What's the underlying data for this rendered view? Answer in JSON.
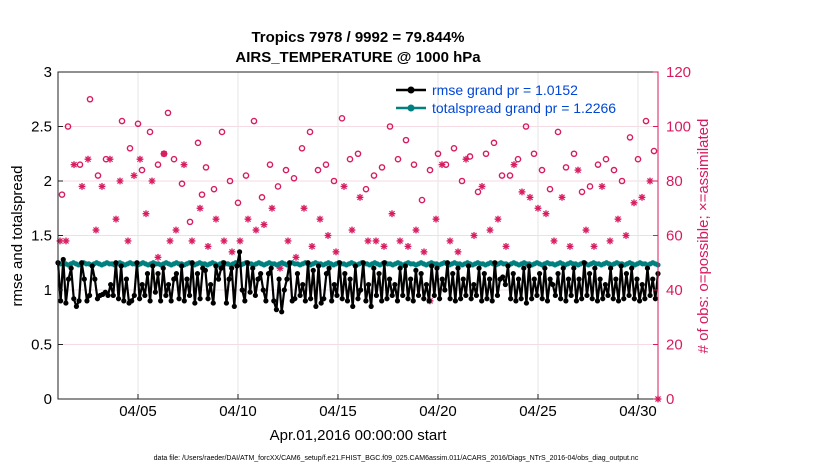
{
  "chart_data": {
    "type": "line",
    "title_line1": "Tropics 7978 / 9992 = 79.844%",
    "title_line2": "AIRS_TEMPERATURE @ 1000 hPa",
    "xlabel": "Apr.01,2016 00:00:00 start",
    "ylabel_left": "rmse and totalspread",
    "ylabel_right": "# of obs: o=possible; ×=assimilated",
    "footer": "data file: /Users/raeder/DAI/ATM_forcXX/CAM6_setup/f.e21.FHIST_BGC.f09_025.CAM6assim.011/ACARS_2016/Diags_NTrS_2016-04/obs_diag_output.nc",
    "x_ticks": [
      {
        "day": 5,
        "label": "04/05"
      },
      {
        "day": 10,
        "label": "04/10"
      },
      {
        "day": 15,
        "label": "04/15"
      },
      {
        "day": 20,
        "label": "04/20"
      },
      {
        "day": 25,
        "label": "04/25"
      },
      {
        "day": 30,
        "label": "04/30"
      }
    ],
    "y_left_ticks": [
      {
        "v": 0,
        "label": "0"
      },
      {
        "v": 0.5,
        "label": "0.5"
      },
      {
        "v": 1,
        "label": "1"
      },
      {
        "v": 1.5,
        "label": "1.5"
      },
      {
        "v": 2,
        "label": "2"
      },
      {
        "v": 2.5,
        "label": "2.5"
      },
      {
        "v": 3,
        "label": "3"
      }
    ],
    "y_right_ticks": [
      {
        "v": 0,
        "label": "0"
      },
      {
        "v": 20,
        "label": "20"
      },
      {
        "v": 40,
        "label": "40"
      },
      {
        "v": 60,
        "label": "60"
      },
      {
        "v": 80,
        "label": "80"
      },
      {
        "v": 100,
        "label": "100"
      },
      {
        "v": 120,
        "label": "120"
      }
    ],
    "xlim": [
      1.0,
      31.0
    ],
    "ylim_left": [
      0,
      3
    ],
    "ylim_right": [
      0,
      120
    ],
    "grid": true,
    "legend_position": "top-right",
    "colors": {
      "rmse": "#000000",
      "spread": "#00807f",
      "obs": "#d81b60",
      "legend_text": "#0047d6"
    },
    "series": [
      {
        "name": "rmse grand pr = 1.0152",
        "key": "rmse",
        "values": [
          1.25,
          0.9,
          1.28,
          0.88,
          1.1,
          1.2,
          0.92,
          0.85,
          0.9,
          1.25,
          1.1,
          0.9,
          0.95,
          1.22,
          1.1,
          0.92,
          0.95,
          0.96,
          0.98,
          0.95,
          1.05,
          0.95,
          1.25,
          0.92,
          1.22,
          0.9,
          1.1,
          0.88,
          0.9,
          0.95,
          1.25,
          0.92,
          1.05,
          0.95,
          1.15,
          0.9,
          1.22,
          0.98,
          1.15,
          0.9,
          1.2,
          0.95,
          1.05,
          0.9,
          1.1,
          1.15,
          0.92,
          1.22,
          0.9,
          1.1,
          0.95,
          1.25,
          0.88,
          1.15,
          0.92,
          1.2,
          1.18,
          0.92,
          1.05,
          0.88,
          1.22,
          1.1,
          1.2,
          1.25,
          0.88,
          1.1,
          1.2,
          0.85,
          1.22,
          1.35,
          1.0,
          0.9,
          1.25,
          0.98,
          1.2,
          0.95,
          1.1,
          1.15,
          1.0,
          0.9,
          1.15,
          1.2,
          0.9,
          0.82,
          1.1,
          0.8,
          1.0,
          1.1,
          1.25,
          0.9,
          0.92,
          1.15,
          0.95,
          1.05,
          0.9,
          1.25,
          0.92,
          1.18,
          0.85,
          1.22,
          0.88,
          0.92,
          1.15,
          1.2,
          0.9,
          1.05,
          0.95,
          1.25,
          0.92,
          1.15,
          0.9,
          1.1,
          0.85,
          1.22,
          0.92,
          1.0,
          1.25,
          0.9,
          1.05,
          0.85,
          1.2,
          0.95,
          1.15,
          0.9,
          1.25,
          0.92,
          1.1,
          0.95,
          1.05,
          0.9,
          1.2,
          0.95,
          1.22,
          0.92,
          1.1,
          0.9,
          1.18,
          0.95,
          1.15,
          0.92,
          1.05,
          0.9,
          1.22,
          0.95,
          1.2,
          0.92,
          1.1,
          1.0,
          1.25,
          0.92,
          1.15,
          0.9,
          1.2,
          0.92,
          1.1,
          0.95,
          1.22,
          0.92,
          1.05,
          0.95,
          1.2,
          0.9,
          1.15,
          0.92,
          1.1,
          0.9,
          1.25,
          0.95,
          1.1,
          1.12,
          1.05,
          1.22,
          0.92,
          1.15,
          0.9,
          1.1,
          0.92,
          1.2,
          0.88,
          1.22,
          0.92,
          1.1,
          0.95,
          1.15,
          0.92,
          1.2,
          0.9,
          1.1,
          1.05,
          0.95,
          1.15,
          0.92,
          1.2,
          0.9,
          1.1,
          0.95,
          1.2,
          0.9,
          1.1,
          0.92,
          1.25,
          0.95,
          1.15,
          0.92,
          1.2,
          0.9,
          1.1,
          0.92,
          1.05,
          0.95,
          1.2,
          0.92,
          1.1,
          0.9,
          1.22,
          0.92,
          1.15,
          0.95,
          1.2,
          0.92,
          1.1,
          0.9,
          1.05,
          0.92,
          1.2,
          0.95,
          1.1,
          0.92,
          1.15
        ]
      },
      {
        "name": "totalspread grand pr = 1.2266",
        "key": "spread",
        "values": [
          1.25,
          1.24,
          1.25,
          1.24,
          1.23,
          1.24,
          1.25,
          1.24,
          1.23,
          1.24,
          1.25,
          1.24,
          1.24,
          1.23,
          1.24,
          1.25,
          1.24,
          1.23,
          1.24,
          1.25,
          1.24,
          1.24,
          1.23,
          1.24,
          1.25,
          1.24,
          1.23,
          1.24,
          1.25,
          1.24,
          1.24,
          1.23,
          1.24,
          1.25,
          1.24,
          1.23,
          1.24,
          1.25,
          1.24,
          1.24,
          1.23,
          1.24,
          1.25,
          1.24,
          1.23,
          1.24,
          1.25,
          1.24,
          1.24,
          1.23,
          1.24,
          1.25,
          1.24,
          1.23,
          1.24,
          1.25,
          1.24,
          1.24,
          1.23,
          1.24,
          1.25,
          1.24,
          1.23,
          1.24,
          1.25,
          1.24,
          1.24,
          1.23,
          1.24,
          1.25,
          1.24,
          1.23,
          1.24,
          1.25,
          1.24,
          1.24,
          1.23,
          1.24,
          1.25,
          1.24,
          1.23,
          1.24,
          1.25,
          1.24,
          1.24,
          1.23,
          1.24,
          1.25,
          1.24,
          1.23,
          1.24,
          1.25,
          1.24,
          1.24,
          1.23,
          1.24,
          1.25,
          1.24,
          1.23,
          1.24,
          1.25,
          1.24,
          1.24,
          1.23,
          1.24,
          1.25,
          1.24,
          1.23,
          1.24,
          1.25,
          1.24,
          1.24,
          1.23,
          1.24,
          1.25,
          1.24,
          1.23,
          1.24,
          1.25,
          1.24,
          1.24,
          1.23,
          1.24,
          1.25,
          1.24,
          1.23,
          1.24,
          1.25,
          1.24,
          1.24,
          1.23,
          1.24,
          1.25,
          1.24,
          1.23,
          1.24,
          1.25,
          1.24,
          1.24,
          1.23,
          1.24,
          1.25,
          1.24,
          1.23,
          1.24,
          1.25,
          1.24,
          1.24,
          1.23,
          1.24,
          1.25,
          1.24,
          1.23,
          1.24,
          1.25,
          1.24,
          1.24,
          1.23,
          1.24,
          1.25,
          1.24,
          1.23,
          1.24,
          1.25,
          1.24,
          1.24,
          1.23,
          1.24,
          1.25,
          1.24,
          1.23,
          1.24,
          1.25,
          1.24,
          1.24,
          1.23,
          1.24,
          1.25,
          1.24,
          1.23,
          1.24,
          1.25,
          1.24,
          1.24,
          1.23,
          1.24,
          1.25,
          1.24,
          1.23,
          1.24,
          1.25,
          1.24,
          1.24,
          1.23,
          1.24,
          1.25,
          1.24,
          1.23,
          1.24,
          1.25,
          1.24,
          1.24,
          1.23,
          1.24,
          1.25,
          1.24,
          1.23,
          1.24,
          1.25,
          1.24,
          1.24,
          1.23,
          1.24,
          1.25,
          1.24,
          1.23,
          1.24,
          1.25,
          1.24,
          1.24,
          1.23,
          1.24,
          1.25,
          1.24,
          1.23,
          1.24,
          1.25,
          1.24,
          1.24,
          1.23,
          1.24,
          1.25,
          1.24,
          1.23
        ]
      },
      {
        "name": "obs possible",
        "key": "possible",
        "points": [
          [
            1.2,
            75
          ],
          [
            1.5,
            100
          ],
          [
            2.1,
            86
          ],
          [
            2.6,
            110
          ],
          [
            3.0,
            82
          ],
          [
            3.4,
            88
          ],
          [
            4.2,
            102
          ],
          [
            4.6,
            92
          ],
          [
            5.0,
            101
          ],
          [
            5.2,
            84
          ],
          [
            5.6,
            98
          ],
          [
            6.0,
            86
          ],
          [
            6.3,
            90
          ],
          [
            6.5,
            105
          ],
          [
            6.8,
            88
          ],
          [
            7.2,
            79
          ],
          [
            7.6,
            65
          ],
          [
            8.0,
            94
          ],
          [
            8.2,
            75
          ],
          [
            8.4,
            85
          ],
          [
            8.8,
            77
          ],
          [
            9.2,
            98
          ],
          [
            9.6,
            80
          ],
          [
            10.0,
            72
          ],
          [
            10.4,
            82
          ],
          [
            10.8,
            102
          ],
          [
            11.2,
            74
          ],
          [
            11.6,
            86
          ],
          [
            12.0,
            78
          ],
          [
            12.4,
            84
          ],
          [
            12.8,
            81
          ],
          [
            13.2,
            92
          ],
          [
            13.6,
            98
          ],
          [
            14.0,
            84
          ],
          [
            14.4,
            86
          ],
          [
            14.8,
            80
          ],
          [
            15.2,
            103
          ],
          [
            15.6,
            88
          ],
          [
            16.0,
            90
          ],
          [
            16.4,
            77
          ],
          [
            16.8,
            82
          ],
          [
            17.2,
            85
          ],
          [
            17.6,
            100
          ],
          [
            18.0,
            88
          ],
          [
            18.4,
            95
          ],
          [
            18.8,
            86
          ],
          [
            19.2,
            73
          ],
          [
            19.6,
            84
          ],
          [
            20.0,
            90
          ],
          [
            20.4,
            86
          ],
          [
            20.8,
            92
          ],
          [
            21.2,
            80
          ],
          [
            21.6,
            89
          ],
          [
            22.0,
            76
          ],
          [
            22.4,
            90
          ],
          [
            22.8,
            94
          ],
          [
            23.2,
            82
          ],
          [
            23.6,
            82
          ],
          [
            24.0,
            88
          ],
          [
            24.4,
            100
          ],
          [
            24.8,
            90
          ],
          [
            25.2,
            84
          ],
          [
            25.6,
            77
          ],
          [
            26.0,
            98
          ],
          [
            26.4,
            85
          ],
          [
            26.8,
            90
          ],
          [
            27.2,
            76
          ],
          [
            27.6,
            78
          ],
          [
            28.0,
            86
          ],
          [
            28.4,
            88
          ],
          [
            28.8,
            84
          ],
          [
            29.2,
            80
          ],
          [
            29.6,
            96
          ],
          [
            30.0,
            88
          ],
          [
            30.4,
            102
          ],
          [
            30.8,
            91
          ]
        ]
      },
      {
        "name": "obs assimilated",
        "key": "assimilated",
        "points": [
          [
            1.1,
            58
          ],
          [
            1.4,
            58
          ],
          [
            1.8,
            86
          ],
          [
            2.2,
            78
          ],
          [
            2.5,
            88
          ],
          [
            2.9,
            62
          ],
          [
            3.2,
            78
          ],
          [
            3.6,
            88
          ],
          [
            3.9,
            66
          ],
          [
            4.1,
            80
          ],
          [
            4.5,
            58
          ],
          [
            4.8,
            82
          ],
          [
            5.1,
            88
          ],
          [
            5.4,
            68
          ],
          [
            5.7,
            80
          ],
          [
            6.0,
            52
          ],
          [
            6.3,
            90
          ],
          [
            6.6,
            58
          ],
          [
            6.9,
            62
          ],
          [
            7.3,
            86
          ],
          [
            7.7,
            58
          ],
          [
            8.1,
            70
          ],
          [
            8.5,
            56
          ],
          [
            8.9,
            66
          ],
          [
            9.3,
            58
          ],
          [
            9.7,
            54
          ],
          [
            10.1,
            58
          ],
          [
            10.5,
            66
          ],
          [
            10.9,
            62
          ],
          [
            11.3,
            64
          ],
          [
            11.7,
            70
          ],
          [
            12.1,
            48
          ],
          [
            12.5,
            58
          ],
          [
            12.9,
            52
          ],
          [
            13.3,
            70
          ],
          [
            13.7,
            56
          ],
          [
            14.1,
            66
          ],
          [
            14.5,
            60
          ],
          [
            14.9,
            54
          ],
          [
            15.3,
            78
          ],
          [
            15.7,
            62
          ],
          [
            16.1,
            74
          ],
          [
            16.5,
            58
          ],
          [
            16.9,
            58
          ],
          [
            17.3,
            56
          ],
          [
            17.7,
            68
          ],
          [
            18.1,
            58
          ],
          [
            18.5,
            56
          ],
          [
            18.9,
            62
          ],
          [
            19.3,
            54
          ],
          [
            19.6,
            36
          ],
          [
            19.9,
            66
          ],
          [
            20.2,
            86
          ],
          [
            20.6,
            58
          ],
          [
            21.0,
            54
          ],
          [
            21.4,
            88
          ],
          [
            21.8,
            60
          ],
          [
            22.2,
            78
          ],
          [
            22.6,
            62
          ],
          [
            23.0,
            66
          ],
          [
            23.4,
            56
          ],
          [
            23.8,
            86
          ],
          [
            24.2,
            76
          ],
          [
            24.6,
            74
          ],
          [
            25.0,
            70
          ],
          [
            25.4,
            68
          ],
          [
            25.8,
            58
          ],
          [
            26.2,
            74
          ],
          [
            26.6,
            56
          ],
          [
            27.0,
            84
          ],
          [
            27.4,
            62
          ],
          [
            27.8,
            56
          ],
          [
            28.2,
            78
          ],
          [
            28.6,
            58
          ],
          [
            29.0,
            66
          ],
          [
            29.4,
            60
          ],
          [
            29.8,
            72
          ],
          [
            30.2,
            74
          ],
          [
            30.6,
            80
          ],
          [
            31.0,
            0
          ]
        ]
      }
    ]
  }
}
